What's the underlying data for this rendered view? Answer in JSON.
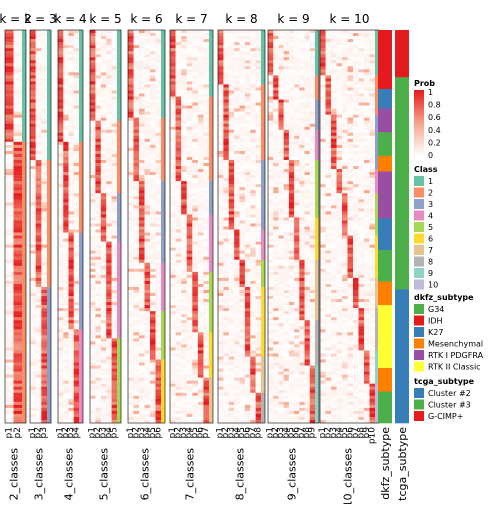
{
  "chart_data": {
    "type": "heatmap",
    "panels": [
      {
        "title": "k = 2",
        "n": 2,
        "col_labels": [
          "p1",
          "p2"
        ],
        "xlabel": "2_classes"
      },
      {
        "title": "k = 3",
        "n": 3,
        "col_labels": [
          "p1",
          "p2",
          "p3"
        ],
        "xlabel": "3_classes"
      },
      {
        "title": "k = 4",
        "n": 4,
        "col_labels": [
          "p1",
          "p2",
          "p3",
          "p4"
        ],
        "xlabel": "4_classes"
      },
      {
        "title": "k = 5",
        "n": 5,
        "col_labels": [
          "p1",
          "p2",
          "p3",
          "p4",
          "p5"
        ],
        "xlabel": "5_classes"
      },
      {
        "title": "k = 6",
        "n": 6,
        "col_labels": [
          "p1",
          "p2",
          "p3",
          "p4",
          "p5",
          "p6"
        ],
        "xlabel": "6_classes"
      },
      {
        "title": "k = 7",
        "n": 7,
        "col_labels": [
          "p1",
          "p2",
          "p3",
          "p4",
          "p5",
          "p6",
          "p7"
        ],
        "xlabel": "7_classes"
      },
      {
        "title": "k = 8",
        "n": 8,
        "col_labels": [
          "p1",
          "p2",
          "p3",
          "p4",
          "p5",
          "p6",
          "p7",
          "p8"
        ],
        "xlabel": "8_classes"
      },
      {
        "title": "k = 9",
        "n": 9,
        "col_labels": [
          "p1",
          "p2",
          "p3",
          "p4",
          "p5",
          "p6",
          "p7",
          "p8",
          "p9"
        ],
        "xlabel": "9_classes"
      },
      {
        "title": "k = 10",
        "n": 10,
        "col_labels": [
          "p1",
          "p2",
          "p3",
          "p4",
          "p5",
          "p6",
          "p7",
          "p8",
          "p9",
          "p10"
        ],
        "xlabel": "10_classes"
      }
    ],
    "annotation_tracks": [
      "dkfz_subtype",
      "tcga_subtype"
    ],
    "legends": {
      "prob": {
        "title": "Prob",
        "ticks": [
          "1",
          "0.8",
          "0.6",
          "0.4",
          "0.2",
          "0"
        ]
      },
      "class": {
        "title": "Class",
        "items": [
          {
            "label": "1",
            "color": "#66C2A5"
          },
          {
            "label": "2",
            "color": "#FC8D62"
          },
          {
            "label": "3",
            "color": "#8DA0CB"
          },
          {
            "label": "4",
            "color": "#E78AC3"
          },
          {
            "label": "5",
            "color": "#A6D854"
          },
          {
            "label": "6",
            "color": "#FFD92F"
          },
          {
            "label": "7",
            "color": "#E5C494"
          },
          {
            "label": "8",
            "color": "#B3B3B3"
          },
          {
            "label": "9",
            "color": "#8DD3C7"
          },
          {
            "label": "10",
            "color": "#BEBADA"
          }
        ]
      },
      "dkfz": {
        "title": "dkfz_subtype",
        "items": [
          {
            "label": "G34",
            "color": "#4DAF4A"
          },
          {
            "label": "IDH",
            "color": "#E41A1C"
          },
          {
            "label": "K27",
            "color": "#377EB8"
          },
          {
            "label": "Mesenchymal",
            "color": "#FF7F00"
          },
          {
            "label": "RTK I PDGFRA",
            "color": "#984EA3"
          },
          {
            "label": "RTK II Classic",
            "color": "#FFFF33"
          }
        ]
      },
      "tcga": {
        "title": "tcga_subtype",
        "items": [
          {
            "label": "Cluster #2",
            "color": "#377EB8"
          },
          {
            "label": "Cluster #3",
            "color": "#4DAF4A"
          },
          {
            "label": "G-CIMP+",
            "color": "#E41A1C"
          }
        ]
      }
    }
  }
}
